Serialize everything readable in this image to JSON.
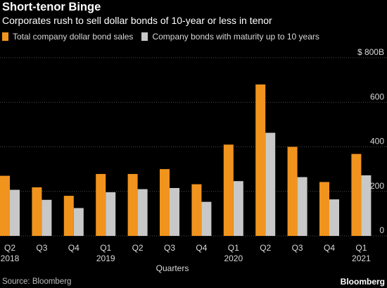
{
  "header": {
    "title": "Short-tenor Binge",
    "subtitle": "Corporates rush to sell dollar bonds of 10-year or less in tenor"
  },
  "footer": {
    "source": "Source: Bloomberg",
    "logo": "Bloomberg"
  },
  "colors": {
    "background": "#000000",
    "series_total": "#f0941e",
    "series_short": "#c8c8c8",
    "grid": "#4d4d4d",
    "text": "#ffffff"
  },
  "chart_data": {
    "type": "bar",
    "categories": [
      "Q2\n2018",
      "Q3",
      "Q4",
      "Q1\n2019",
      "Q2",
      "Q3",
      "Q4",
      "Q1\n2020",
      "Q2",
      "Q3",
      "Q4",
      "Q1\n2021"
    ],
    "series": [
      {
        "name": "Total company dollar bond sales",
        "values": [
          270,
          218,
          180,
          278,
          278,
          300,
          232,
          410,
          680,
          400,
          242,
          368
        ]
      },
      {
        "name": "Company bonds with maturity up to 10 years",
        "values": [
          207,
          162,
          125,
          196,
          210,
          215,
          153,
          246,
          463,
          264,
          164,
          272
        ]
      }
    ],
    "xlabel": "Quarters",
    "ylabel": "",
    "ylim": [
      0,
      800
    ],
    "yticks": [
      0,
      200,
      400,
      600,
      800
    ],
    "ytick_labels": [
      "0",
      "200",
      "400",
      "600",
      "$ 800B"
    ],
    "grid": true,
    "legend_position": "top-left",
    "y_axis_position": "right"
  }
}
